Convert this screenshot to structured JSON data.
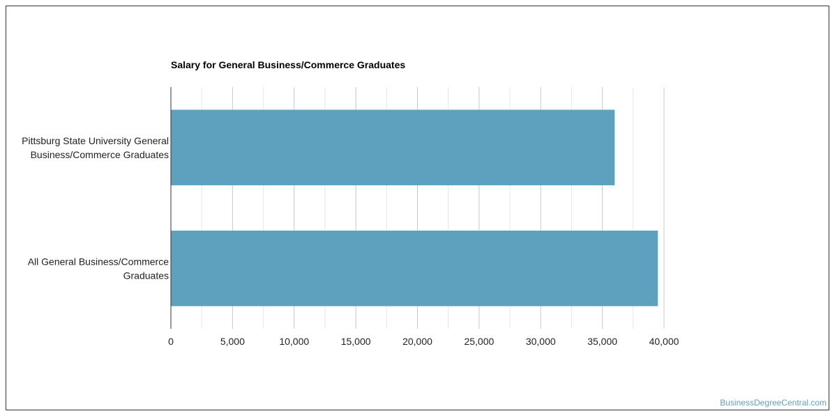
{
  "chart_data": {
    "type": "bar",
    "orientation": "horizontal",
    "title": "Salary for General Business/Commerce Graduates",
    "categories": [
      [
        "Pittsburg State University General",
        "Business/Commerce Graduates"
      ],
      [
        "All General Business/Commerce",
        "Graduates"
      ]
    ],
    "values": [
      36000,
      39500
    ],
    "xlim": [
      0,
      40000
    ],
    "x_ticks": [
      "0",
      "5,000",
      "10,000",
      "15,000",
      "20,000",
      "25,000",
      "30,000",
      "35,000",
      "40,000"
    ],
    "grid": true,
    "legend": "none"
  },
  "colors": {
    "bar": "#5ea1be",
    "grid_major": "#c8c8c8",
    "grid_minor": "#e6e6e6",
    "axis": "#333333",
    "watermark": "#5ea1be"
  },
  "watermark": "BusinessDegreeCentral.com"
}
